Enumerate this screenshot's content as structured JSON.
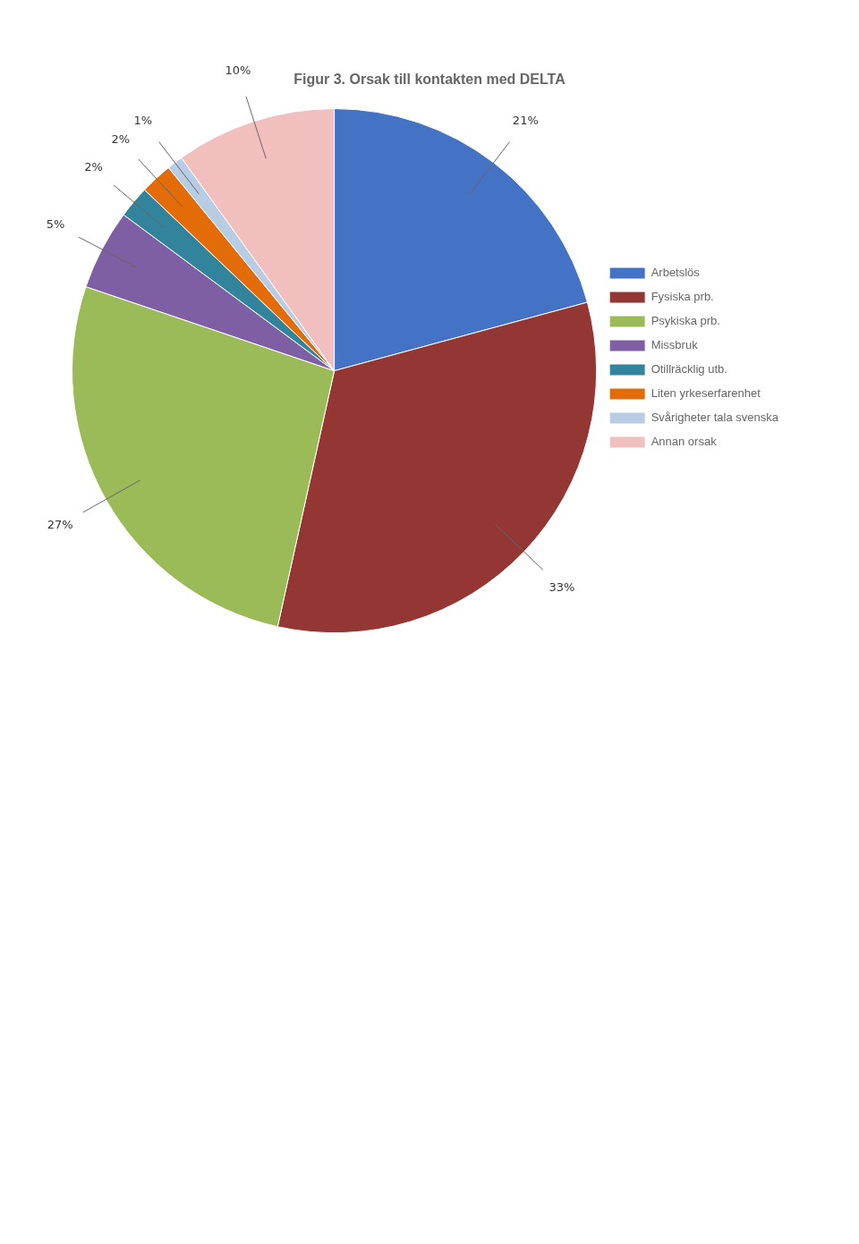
{
  "chart_data": {
    "type": "pie",
    "title": "Figur 3. Orsak till kontakten med DELTA",
    "categories": [
      "Arbetslös",
      "Fysiska prb.",
      "Psykiska prb.",
      "Missbruk",
      "Otillräcklig utb.",
      "Liten yrkeserfarenhet",
      "Svårigheter tala svenska",
      "Annan orsak"
    ],
    "values": [
      21,
      33,
      27,
      5,
      2,
      2,
      1,
      10
    ],
    "value_labels": [
      "21%",
      "33%",
      "27%",
      "5%",
      "2%",
      "2%",
      "1%",
      "10%"
    ],
    "colors": [
      "#4472C4",
      "#943634",
      "#9BBB59",
      "#7F5FA3",
      "#31849B",
      "#E36C09",
      "#B8CCE4",
      "#F2BFBF"
    ],
    "data_labels": true,
    "legend": "right"
  }
}
